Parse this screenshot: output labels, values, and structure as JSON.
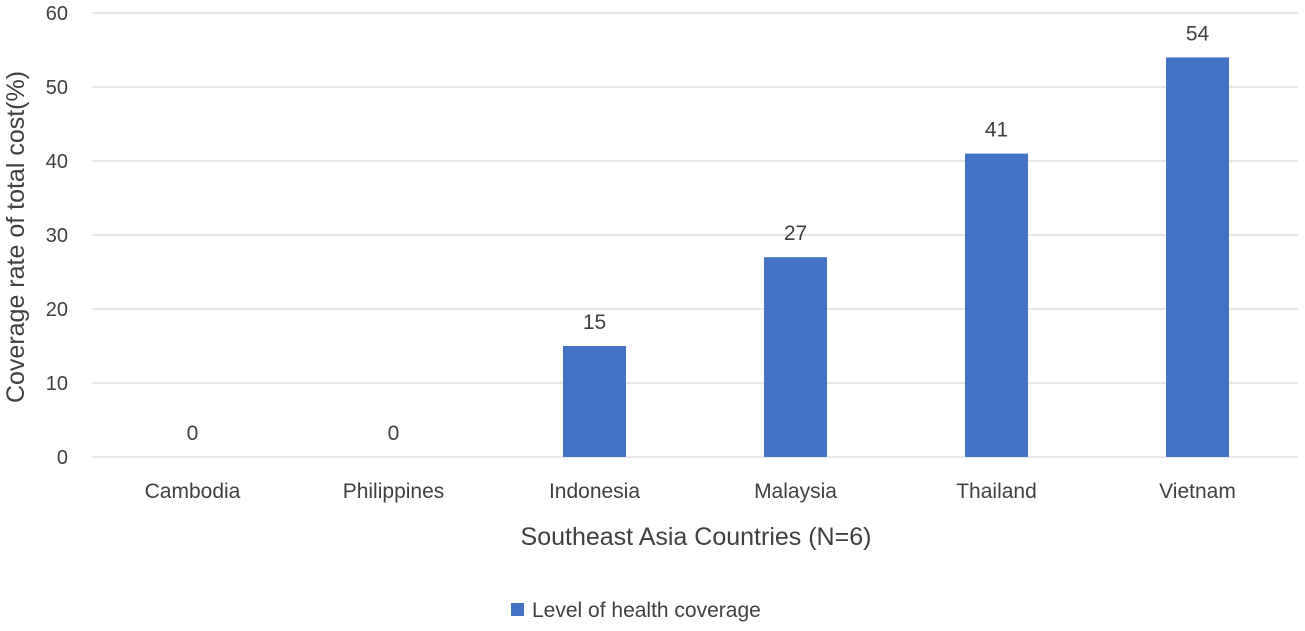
{
  "chart_data": {
    "type": "bar",
    "categories": [
      "Cambodia",
      "Philippines",
      "Indonesia",
      "Malaysia",
      "Thailand",
      "Vietnam"
    ],
    "series": [
      {
        "name": "Level of health coverage",
        "values": [
          0,
          0,
          15,
          27,
          41,
          54
        ],
        "color": "#4472C4"
      }
    ],
    "xlabel": "Southeast Asia Countries (N=6)",
    "ylabel": "Coverage rate  of total cost(%)",
    "ylim": [
      0,
      60
    ],
    "yticks": [
      0,
      10,
      20,
      30,
      40,
      50,
      60
    ],
    "grid": true,
    "data_labels": true,
    "legend_position": "bottom"
  }
}
